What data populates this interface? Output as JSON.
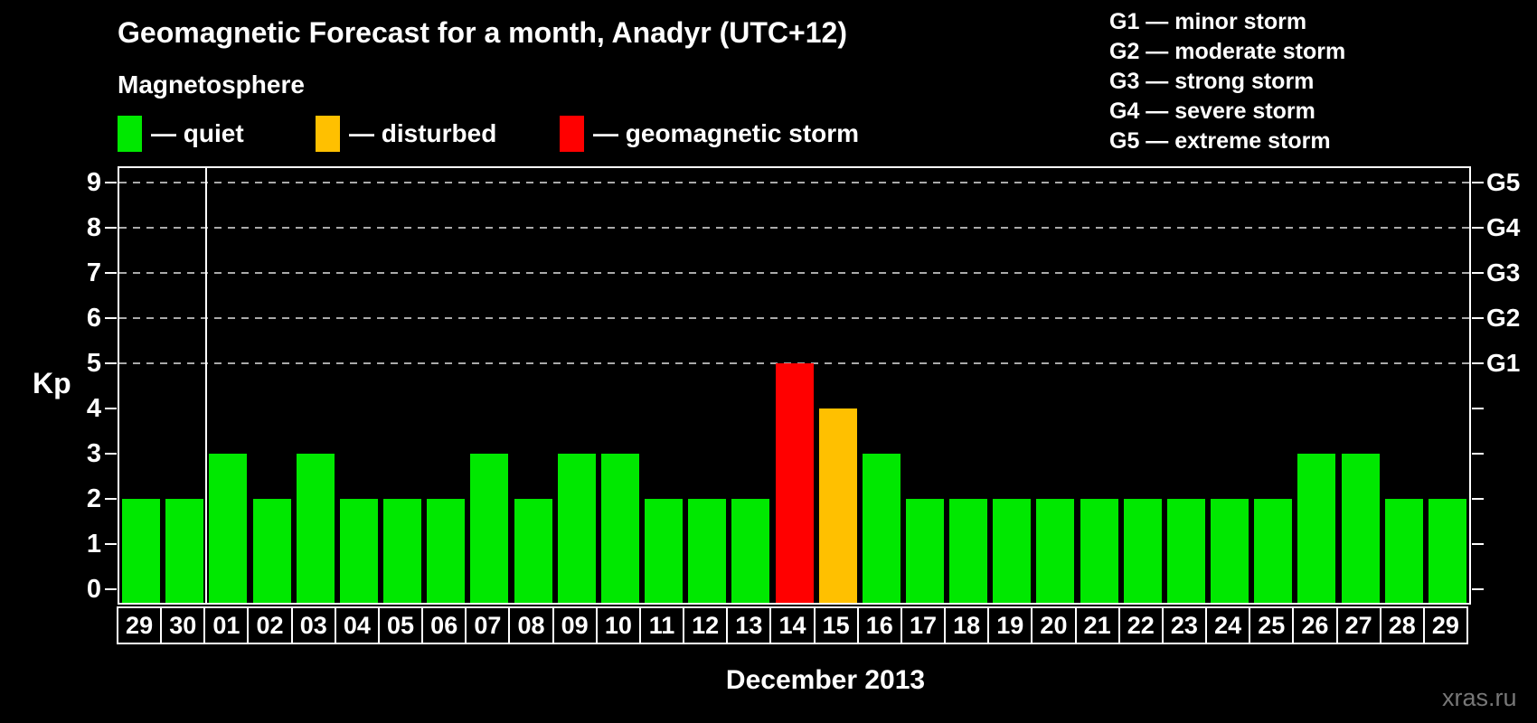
{
  "title": "Geomagnetic Forecast for a month, Anadyr (UTC+12)",
  "subtitle": "Magnetosphere",
  "legend": {
    "items": [
      {
        "label": "— quiet",
        "color": "#00e800",
        "status": "quiet"
      },
      {
        "label": "— disturbed",
        "color": "#ffc000",
        "status": "disturbed"
      },
      {
        "label": "— geomagnetic storm",
        "color": "#ff0000",
        "status": "storm"
      }
    ]
  },
  "g_legend": [
    "G1 — minor storm",
    "G2 — moderate storm",
    "G3 — strong storm",
    "G4 — severe storm",
    "G5 — extreme storm"
  ],
  "watermark": "xras.ru",
  "status_colors": {
    "quiet": "#00e800",
    "disturbed": "#ffc000",
    "storm": "#ff0000"
  },
  "chart_data": {
    "type": "bar",
    "title": "Geomagnetic Forecast for a month, Anadyr (UTC+12)",
    "xlabel": "December 2013",
    "ylabel": "Kp",
    "ylim": [
      0,
      9
    ],
    "grid": "dashed horizontal at Kp 5-9",
    "y_ticks": [
      0,
      1,
      2,
      3,
      4,
      5,
      6,
      7,
      8,
      9
    ],
    "gridline_levels": [
      5,
      6,
      7,
      8,
      9
    ],
    "right_axis": [
      {
        "label": "G1",
        "kp": 5
      },
      {
        "label": "G2",
        "kp": 6
      },
      {
        "label": "G3",
        "kp": 7
      },
      {
        "label": "G4",
        "kp": 8
      },
      {
        "label": "G5",
        "kp": 9
      }
    ],
    "month_separator_after_slot": 2,
    "categories": [
      "29",
      "30",
      "01",
      "02",
      "03",
      "04",
      "05",
      "06",
      "07",
      "08",
      "09",
      "10",
      "11",
      "12",
      "13",
      "14",
      "15",
      "16",
      "17",
      "18",
      "19",
      "20",
      "21",
      "22",
      "23",
      "24",
      "25",
      "26",
      "27",
      "28",
      "29"
    ],
    "values": [
      2,
      2,
      3,
      2,
      3,
      2,
      2,
      2,
      3,
      2,
      3,
      3,
      2,
      2,
      2,
      5,
      4,
      3,
      2,
      2,
      2,
      2,
      2,
      2,
      2,
      2,
      2,
      3,
      3,
      2,
      2
    ],
    "statuses": [
      "quiet",
      "quiet",
      "quiet",
      "quiet",
      "quiet",
      "quiet",
      "quiet",
      "quiet",
      "quiet",
      "quiet",
      "quiet",
      "quiet",
      "quiet",
      "quiet",
      "quiet",
      "storm",
      "disturbed",
      "quiet",
      "quiet",
      "quiet",
      "quiet",
      "quiet",
      "quiet",
      "quiet",
      "quiet",
      "quiet",
      "quiet",
      "quiet",
      "quiet",
      "quiet",
      "quiet"
    ]
  }
}
